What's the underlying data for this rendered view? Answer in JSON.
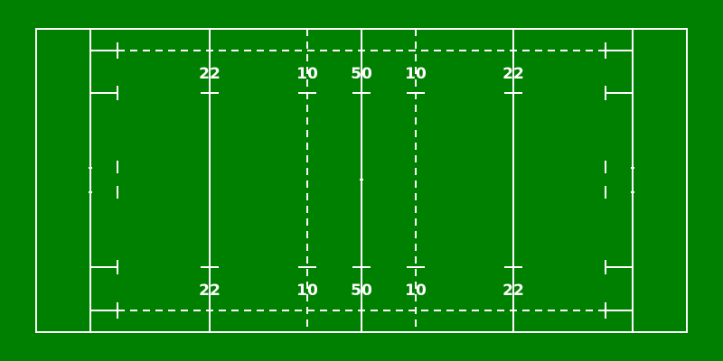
{
  "pitch": {
    "surface_color": "#008000",
    "line_color": "#ffffff",
    "top_labels": [
      "22",
      "10",
      "50",
      "10",
      "22"
    ],
    "bottom_labels": [
      "22",
      "10",
      "50",
      "10",
      "22"
    ]
  }
}
